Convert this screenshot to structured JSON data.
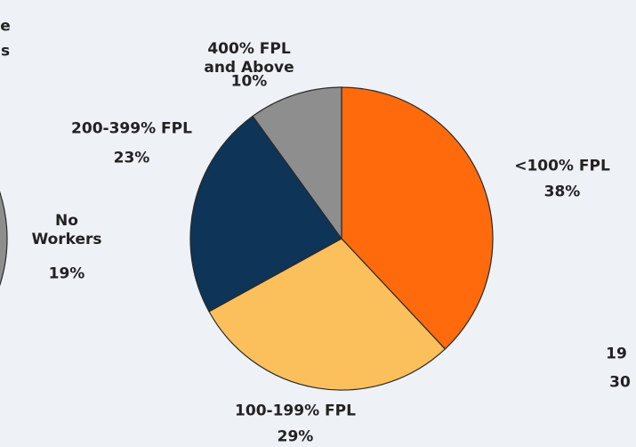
{
  "chart_data": [
    {
      "type": "pie",
      "categories": [
        "<100% FPL",
        "100-199% FPL",
        "200-399% FPL",
        "400% FPL and Above"
      ],
      "values": [
        38,
        29,
        23,
        10
      ],
      "value_labels": [
        "38%",
        "29%",
        "23%",
        "10%"
      ],
      "colors": [
        "#ff6a0d",
        "#fbbf5c",
        "#0e3457",
        "#8e8e8e"
      ]
    },
    {
      "type": "pie",
      "categories": [
        "No Workers"
      ],
      "values": [
        19
      ],
      "value_labels": [
        "19%"
      ],
      "colors": [
        "#8e8e8e"
      ]
    }
  ],
  "cropped_text": [
    "e",
    "s",
    "19",
    "30"
  ]
}
